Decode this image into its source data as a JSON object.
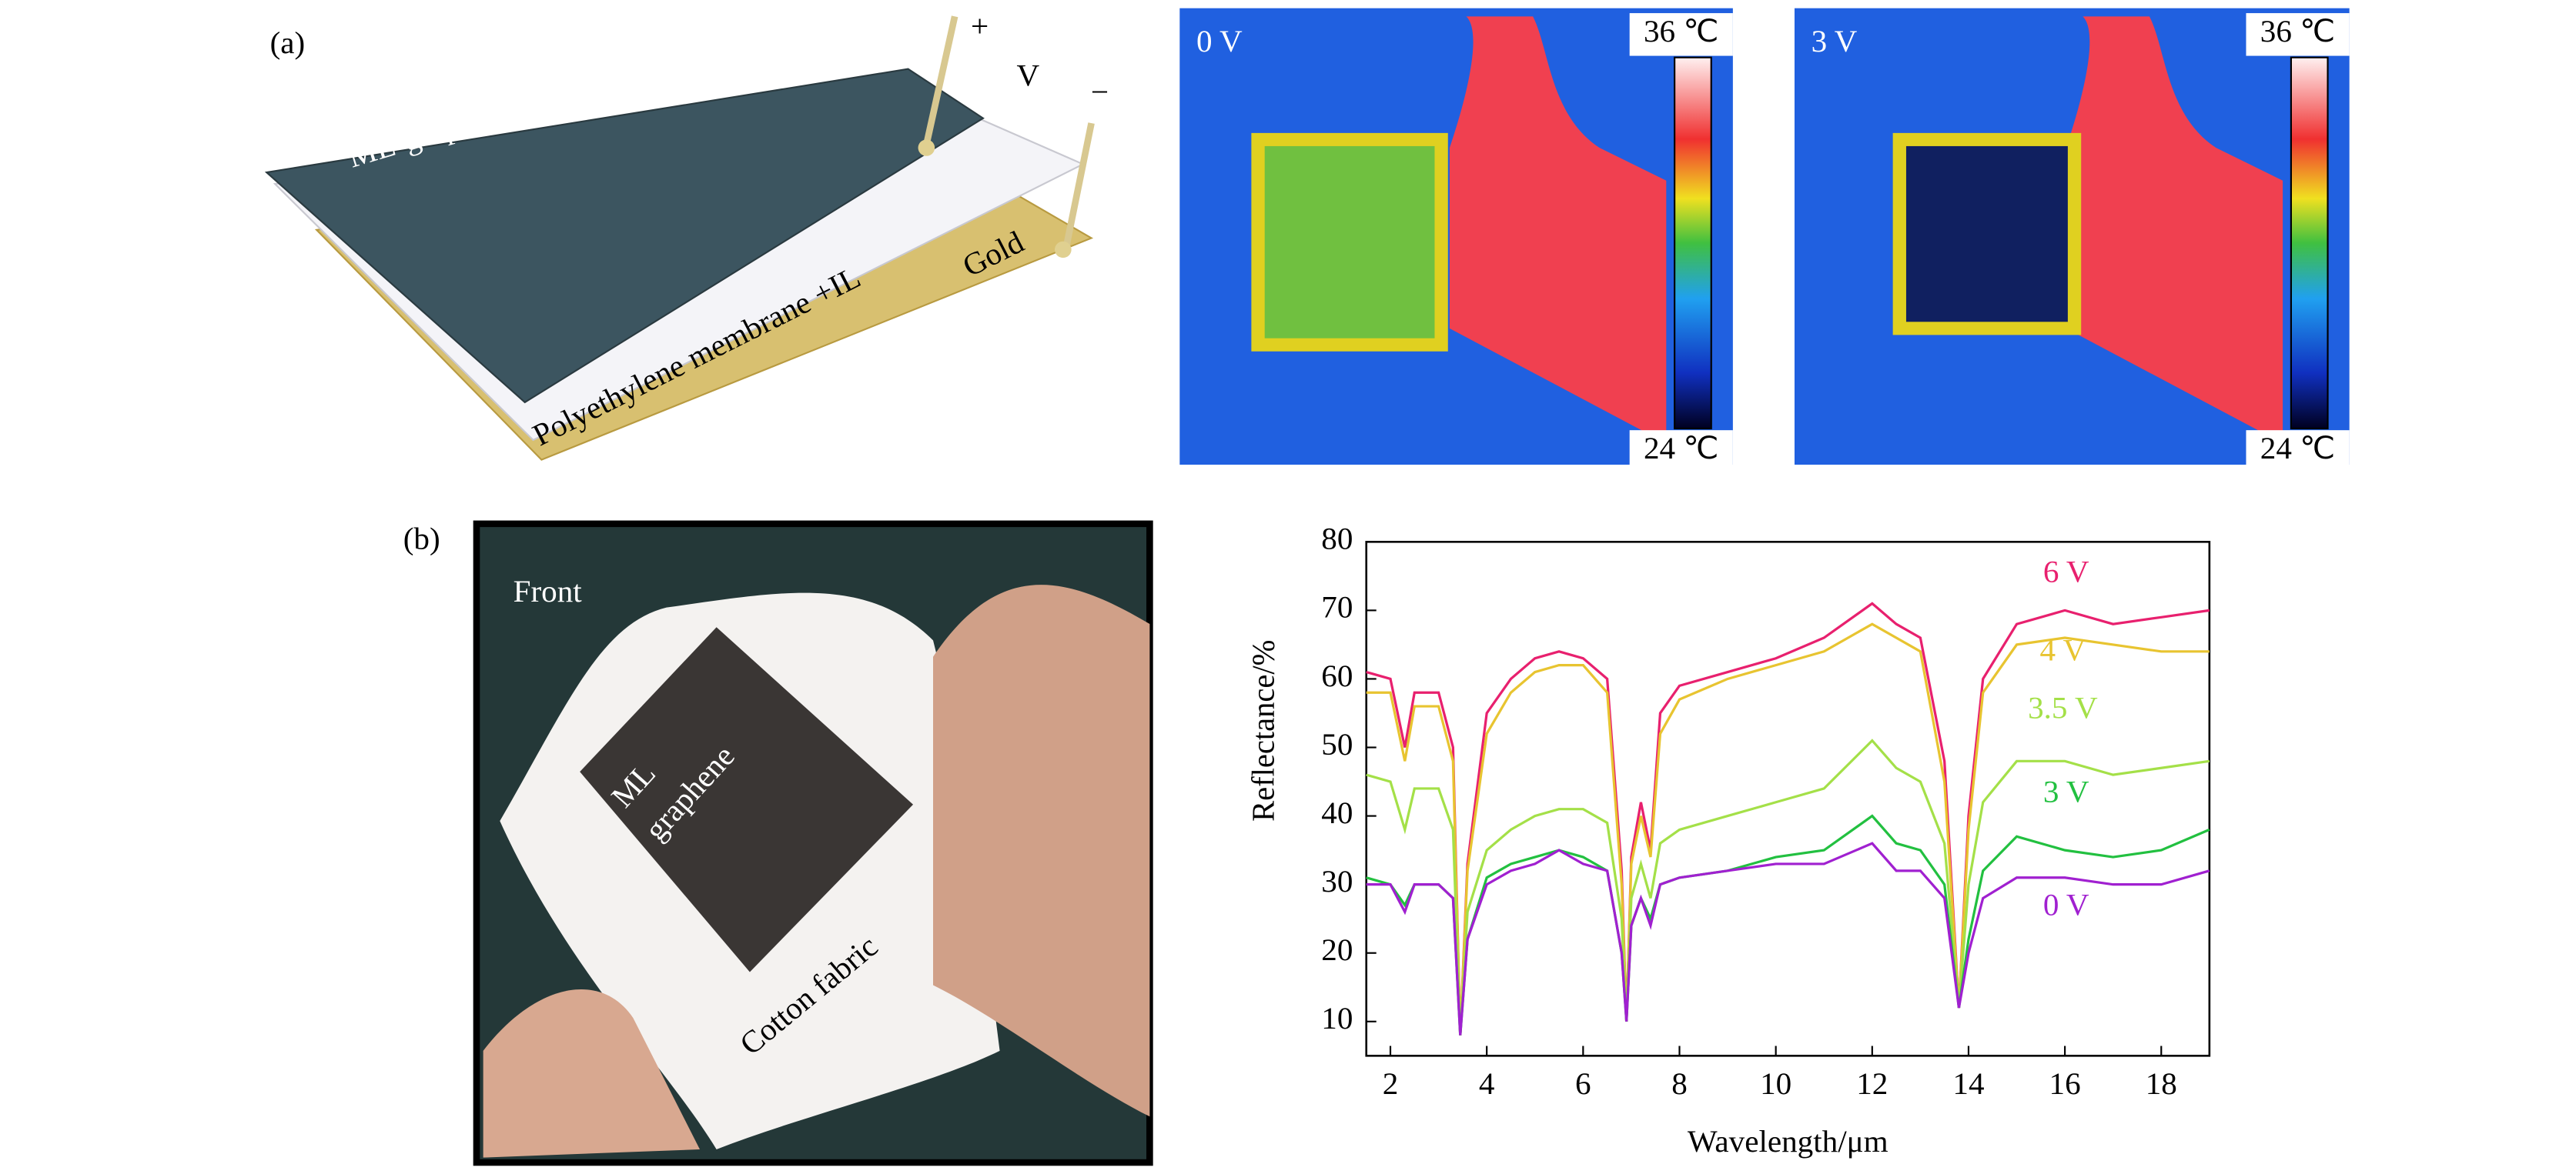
{
  "panel_a": {
    "label": "(a)",
    "diagram": {
      "top_layer": "ML-graphene",
      "middle_layer": "Polyethylene membrane +IL",
      "bottom_layer": "Gold",
      "positive": "+",
      "voltage": "V",
      "negative": "−"
    },
    "thermal_images": [
      {
        "voltage": "0 V",
        "max_temp": "36 ℃",
        "min_temp": "24 ℃"
      },
      {
        "voltage": "3 V",
        "max_temp": "36 ℃",
        "min_temp": "24 ℃"
      }
    ]
  },
  "panel_b": {
    "label": "(b)",
    "photo": {
      "side": "Front",
      "sample_lines": [
        "ML",
        "graphene"
      ],
      "substrate": "Cotton fabric"
    }
  },
  "chart_data": {
    "type": "line",
    "x_label": "Wavelength/μm",
    "y_label": "Reflectance/%",
    "x": [
      1.5,
      2,
      2.3,
      2.5,
      3,
      3.3,
      3.45,
      3.6,
      4,
      4.5,
      5,
      5.5,
      6,
      6.5,
      6.8,
      6.9,
      7.0,
      7.2,
      7.4,
      7.6,
      8,
      9,
      10,
      11,
      12,
      12.5,
      13,
      13.5,
      13.8,
      14,
      14.3,
      15,
      16,
      17,
      18,
      19
    ],
    "series": [
      {
        "name": "6 V",
        "color": "#e8206e",
        "values": [
          61,
          60,
          50,
          58,
          58,
          50,
          8,
          33,
          55,
          60,
          63,
          64,
          63,
          60,
          32,
          10,
          34,
          42,
          35,
          55,
          59,
          61,
          63,
          66,
          71,
          68,
          66,
          48,
          12,
          40,
          60,
          68,
          70,
          68,
          69,
          70
        ]
      },
      {
        "name": "4 V",
        "color": "#e8c430",
        "values": [
          58,
          58,
          48,
          56,
          56,
          48,
          8,
          32,
          52,
          58,
          61,
          62,
          62,
          58,
          30,
          10,
          33,
          40,
          34,
          52,
          57,
          60,
          62,
          64,
          68,
          66,
          64,
          45,
          12,
          38,
          58,
          65,
          66,
          65,
          64,
          64
        ]
      },
      {
        "name": "3.5 V",
        "color": "#a4e048",
        "values": [
          46,
          45,
          38,
          44,
          44,
          38,
          8,
          26,
          35,
          38,
          40,
          41,
          41,
          39,
          25,
          10,
          28,
          33,
          28,
          36,
          38,
          40,
          42,
          44,
          51,
          47,
          45,
          36,
          12,
          30,
          42,
          48,
          48,
          46,
          47,
          48
        ]
      },
      {
        "name": "3 V",
        "color": "#22c040",
        "values": [
          31,
          30,
          27,
          30,
          30,
          28,
          8,
          22,
          31,
          33,
          34,
          35,
          34,
          32,
          20,
          10,
          24,
          28,
          25,
          30,
          31,
          32,
          34,
          35,
          40,
          36,
          35,
          30,
          12,
          22,
          32,
          37,
          35,
          34,
          35,
          38
        ]
      },
      {
        "name": "0 V",
        "color": "#a020d0",
        "values": [
          30,
          30,
          26,
          30,
          30,
          28,
          8,
          22,
          30,
          32,
          33,
          35,
          33,
          32,
          20,
          10,
          24,
          28,
          24,
          30,
          31,
          32,
          33,
          33,
          36,
          32,
          32,
          28,
          12,
          20,
          28,
          31,
          31,
          30,
          30,
          32
        ]
      }
    ],
    "xlim": [
      1.5,
      19
    ],
    "ylim": [
      5,
      80
    ],
    "xticks": [
      2,
      4,
      6,
      8,
      10,
      12,
      14,
      16,
      18
    ],
    "yticks": [
      10,
      20,
      30,
      40,
      50,
      60,
      70,
      80
    ]
  }
}
